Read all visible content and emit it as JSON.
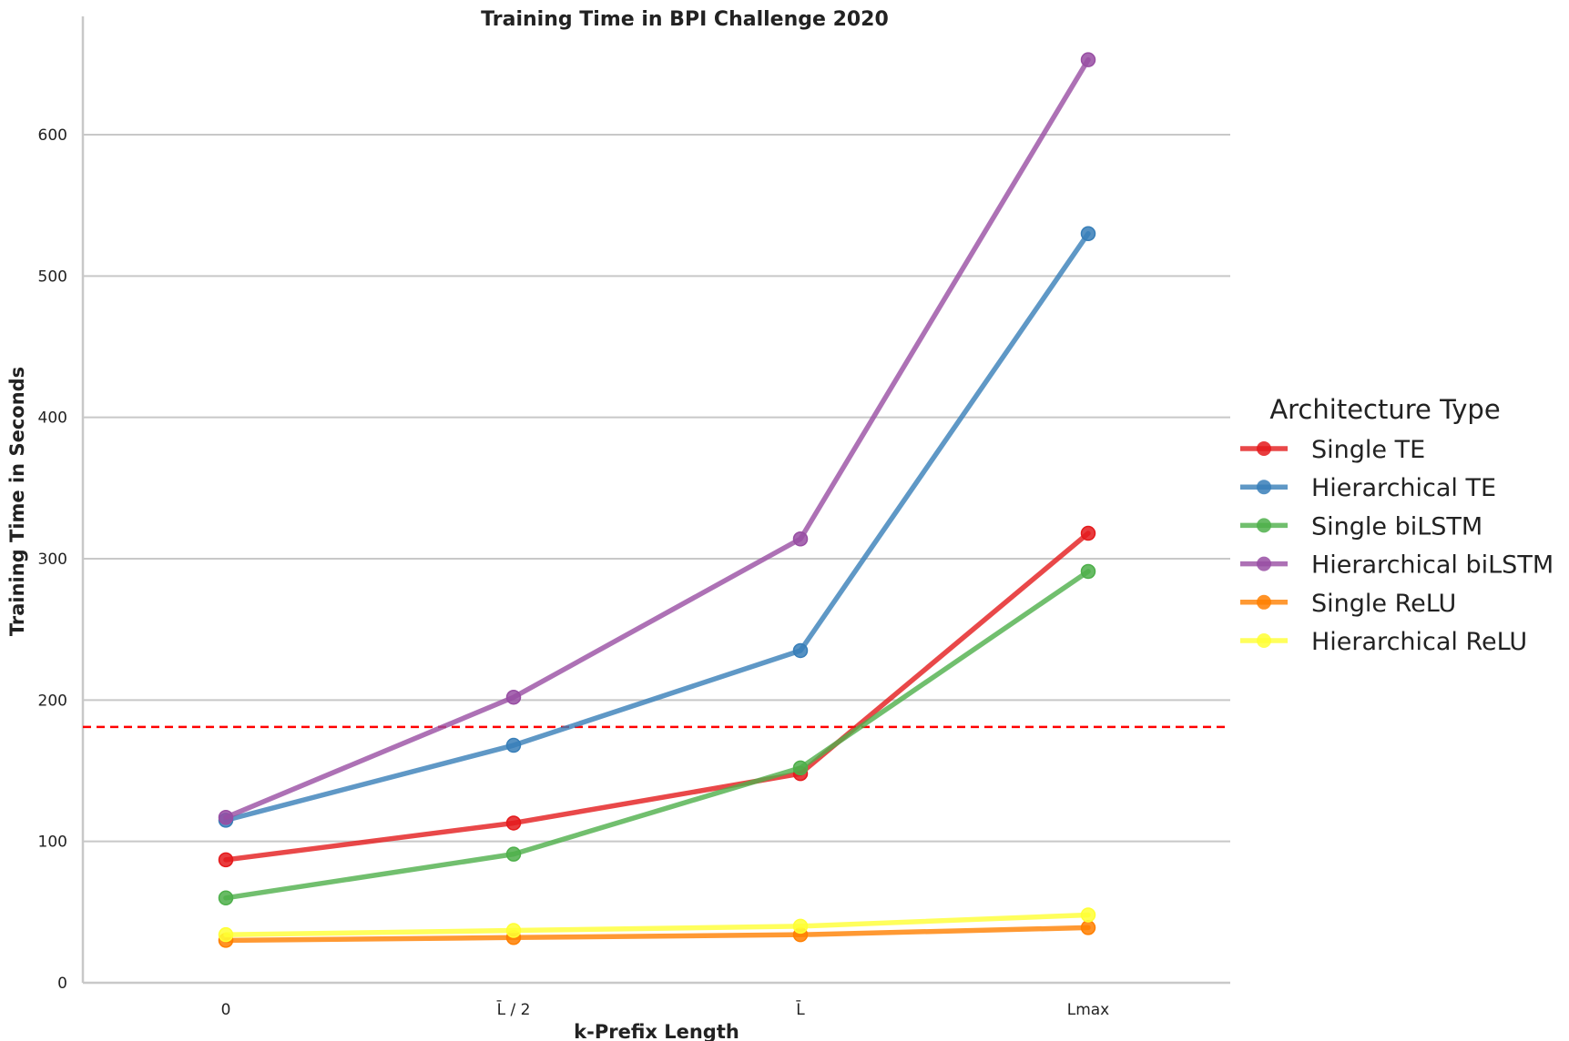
{
  "chart_data": {
    "type": "line",
    "title": "Training Time in BPI Challenge 2020",
    "xlabel": "k-Prefix Length",
    "ylabel": "Training Time in Seconds",
    "categories": [
      "0",
      "L̄ / 2",
      "L̄",
      "Lmax"
    ],
    "ylim": [
      0,
      670
    ],
    "yticks": [
      0,
      100,
      200,
      300,
      400,
      500,
      600
    ],
    "grid": "horizontal",
    "reference_line": {
      "y": 181,
      "color": "#ff0000",
      "style": "dashed"
    },
    "legend": {
      "title": "Architecture Type",
      "placement": "right"
    },
    "series": [
      {
        "name": "Single TE",
        "color": "#e41a1c",
        "values": [
          87,
          113,
          148,
          318
        ]
      },
      {
        "name": "Hierarchical TE",
        "color": "#377eb8",
        "values": [
          115,
          168,
          235,
          530
        ]
      },
      {
        "name": "Single biLSTM",
        "color": "#4daf4a",
        "values": [
          60,
          91,
          152,
          291
        ]
      },
      {
        "name": "Hierarchical biLSTM",
        "color": "#984ea3",
        "values": [
          117,
          202,
          314,
          653
        ]
      },
      {
        "name": "Single ReLU",
        "color": "#ff7f00",
        "values": [
          30,
          32,
          34,
          39
        ]
      },
      {
        "name": "Hierarchical ReLU",
        "color": "#ffff33",
        "values": [
          34,
          37,
          40,
          48
        ]
      }
    ]
  }
}
